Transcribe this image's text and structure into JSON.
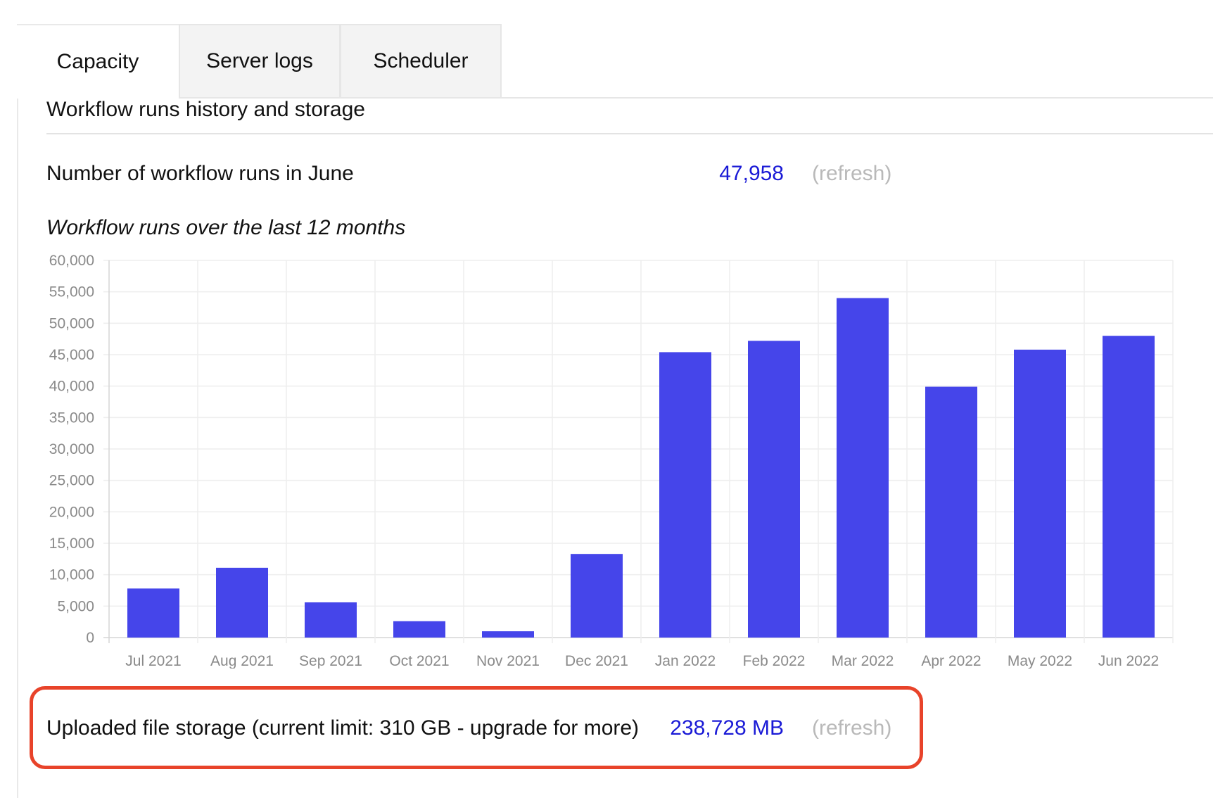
{
  "tabs": [
    {
      "label": "Capacity"
    },
    {
      "label": "Server logs"
    },
    {
      "label": "Scheduler"
    }
  ],
  "section_title": "Workflow runs history and storage",
  "workflow_runs": {
    "label": "Number of workflow runs in June",
    "value": "47,958",
    "refresh": "(refresh)"
  },
  "chart_title": "Workflow runs over the last 12 months",
  "chart_data": {
    "type": "bar",
    "categories": [
      "Jul 2021",
      "Aug 2021",
      "Sep 2021",
      "Oct 2021",
      "Nov 2021",
      "Dec 2021",
      "Jan 2022",
      "Feb 2022",
      "Mar 2022",
      "Apr 2022",
      "May 2022",
      "Jun 2022"
    ],
    "values": [
      7800,
      11100,
      5600,
      2600,
      1000,
      13300,
      45400,
      47200,
      54000,
      39900,
      45800,
      48000
    ],
    "yticks": [
      "0",
      "5,000",
      "10,000",
      "15,000",
      "20,000",
      "25,000",
      "30,000",
      "35,000",
      "40,000",
      "45,000",
      "50,000",
      "55,000",
      "60,000"
    ],
    "ylim": [
      0,
      60000
    ],
    "grid": true,
    "bar_color": "#4545ea"
  },
  "storage": {
    "label": "Uploaded file storage (current limit: 310 GB - upgrade for more)",
    "value": "238,728 MB",
    "refresh": "(refresh)"
  },
  "colors": {
    "link_value": "#1a1ad6",
    "muted": "#b9b9b9",
    "highlight_border": "#e8432a",
    "bar": "#4545ea"
  }
}
